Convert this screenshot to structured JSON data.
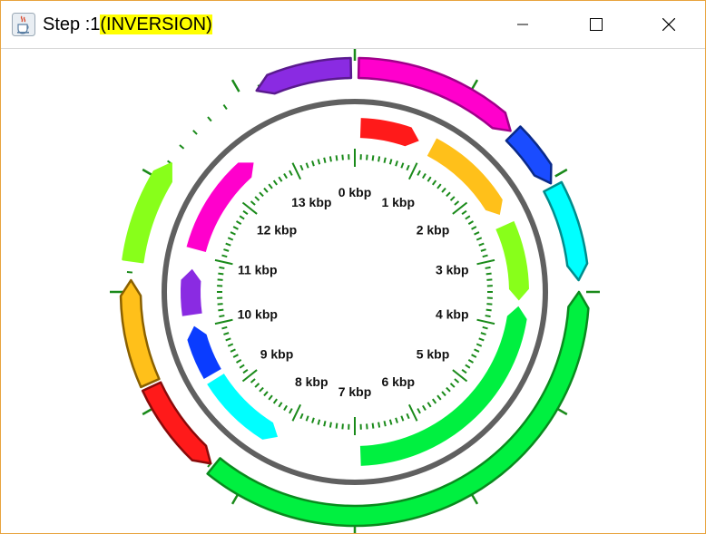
{
  "window": {
    "title_prefix": "Step :1",
    "title_highlight": "(INVERSION)",
    "app_icon": "java-cup-icon",
    "controls": [
      "minimize-icon",
      "maximize-icon",
      "close-icon"
    ],
    "highlight_color": "#ffff00"
  },
  "diagram": {
    "scale_labels": [
      "0 kbp",
      "1 kbp",
      "2 kbp",
      "3 kbp",
      "4 kbp",
      "5 kbp",
      "6 kbp",
      "7 kbp",
      "8 kbp",
      "9 kbp",
      "10 kbp",
      "11 kbp",
      "12 kbp",
      "13 kbp"
    ],
    "outer_segments": [
      {
        "color": "#8a2be2",
        "border": "#5a1a8e"
      },
      {
        "color": "#ff00cc",
        "border": "#a0008a"
      },
      {
        "color": "#1a4cff",
        "border": "#0a2a8a"
      },
      {
        "color": "#00ffff",
        "border": "#008c8c"
      },
      {
        "color": "#00f040",
        "border": "#0a8a1e"
      },
      {
        "color": "#ff1a1a",
        "border": "#8a0a0a"
      },
      {
        "color": "#ffc01a",
        "border": "#8a6000"
      },
      {
        "color": "#88ff1a",
        "border": "#88ff1a"
      }
    ],
    "inner_segments": [
      {
        "color": "#ff1a1a"
      },
      {
        "color": "#ffc01a"
      },
      {
        "color": "#88ff1a"
      },
      {
        "color": "#00f040"
      },
      {
        "color": "#00ffff"
      },
      {
        "color": "#0a3cff"
      },
      {
        "color": "#8a2be2"
      },
      {
        "color": "#ff00cc"
      }
    ],
    "ring_color": "#606060",
    "tick_color": "#1a8a1a"
  }
}
